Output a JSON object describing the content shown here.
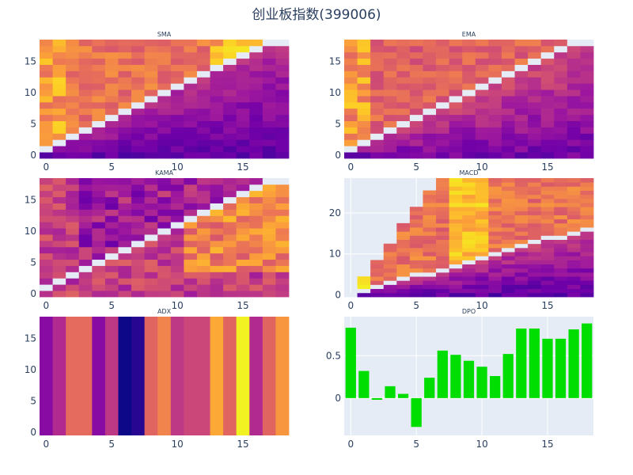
{
  "title": "创业板指数(399006)",
  "chart_data": [
    {
      "type": "heatmap",
      "title": "SMA",
      "x_ticks": [
        "0",
        "5",
        "10",
        "15"
      ],
      "y_ticks": [
        "0",
        "5",
        "10",
        "15"
      ],
      "xlim": [
        -0.5,
        18.5
      ],
      "ylim": [
        -0.5,
        18.5
      ],
      "diagonal_blank": true,
      "note": "lower-triangle / upper-triangle correlation matrix of window sizes"
    },
    {
      "type": "heatmap",
      "title": "EMA",
      "x_ticks": [
        "0",
        "5",
        "10",
        "15"
      ],
      "y_ticks": [
        "0",
        "5",
        "10",
        "15"
      ],
      "xlim": [
        -0.5,
        18.5
      ],
      "ylim": [
        -0.5,
        18.5
      ],
      "diagonal_blank": true
    },
    {
      "type": "heatmap",
      "title": "KAMA",
      "x_ticks": [
        "0",
        "5",
        "10",
        "15"
      ],
      "y_ticks": [
        "0",
        "5",
        "10",
        "15"
      ],
      "xlim": [
        -0.5,
        18.5
      ],
      "ylim": [
        -0.5,
        18.5
      ],
      "diagonal_blank": true
    },
    {
      "type": "heatmap",
      "title": "MACD",
      "x_ticks": [
        "0",
        "5",
        "10",
        "15"
      ],
      "y_ticks": [
        "0",
        "10",
        "20"
      ],
      "xlim": [
        -0.5,
        18.5
      ],
      "ylim": [
        -0.5,
        28.5
      ],
      "diagonal_blank": true,
      "grid": true
    },
    {
      "type": "heatmap",
      "title": "ADX",
      "x_ticks": [
        "0",
        "5",
        "10",
        "15"
      ],
      "y_ticks": [
        "0",
        "5",
        "10",
        "15"
      ],
      "xlim": [
        -0.5,
        18.5
      ],
      "ylim": [
        -0.5,
        18.5
      ],
      "column_values": [
        0.28,
        0.4,
        0.62,
        0.62,
        0.28,
        0.45,
        0.0,
        0.05,
        0.6,
        0.7,
        0.45,
        0.5,
        0.5,
        0.8,
        0.6,
        0.98,
        0.4,
        0.6,
        0.75
      ]
    },
    {
      "type": "bar",
      "title": "DPO",
      "categories": [
        0,
        1,
        2,
        3,
        4,
        5,
        6,
        7,
        8,
        9,
        10,
        11,
        12,
        13,
        14,
        15,
        16,
        17,
        18
      ],
      "values": [
        0.83,
        0.32,
        -0.02,
        0.14,
        0.05,
        -0.34,
        0.24,
        0.56,
        0.51,
        0.44,
        0.37,
        0.26,
        0.52,
        0.82,
        0.82,
        0.7,
        0.7,
        0.81,
        0.88
      ],
      "x_ticks": [
        "0",
        "5",
        "10",
        "15"
      ],
      "y_ticks": [
        "0",
        "0.5"
      ],
      "ylim": [
        -0.44,
        0.96
      ],
      "color": "#00dd00",
      "grid": true
    }
  ],
  "colors": {
    "scale": [
      "#0d0887",
      "#46039f",
      "#7201a8",
      "#9c179e",
      "#bd3786",
      "#d8576b",
      "#ed7953",
      "#fb9f3a",
      "#fdca26",
      "#f0f921"
    ],
    "plot_bg": "#e5ecf6",
    "diag": "#e5ecf6",
    "grid": "#ffffff",
    "text": "#2a3f5f"
  }
}
